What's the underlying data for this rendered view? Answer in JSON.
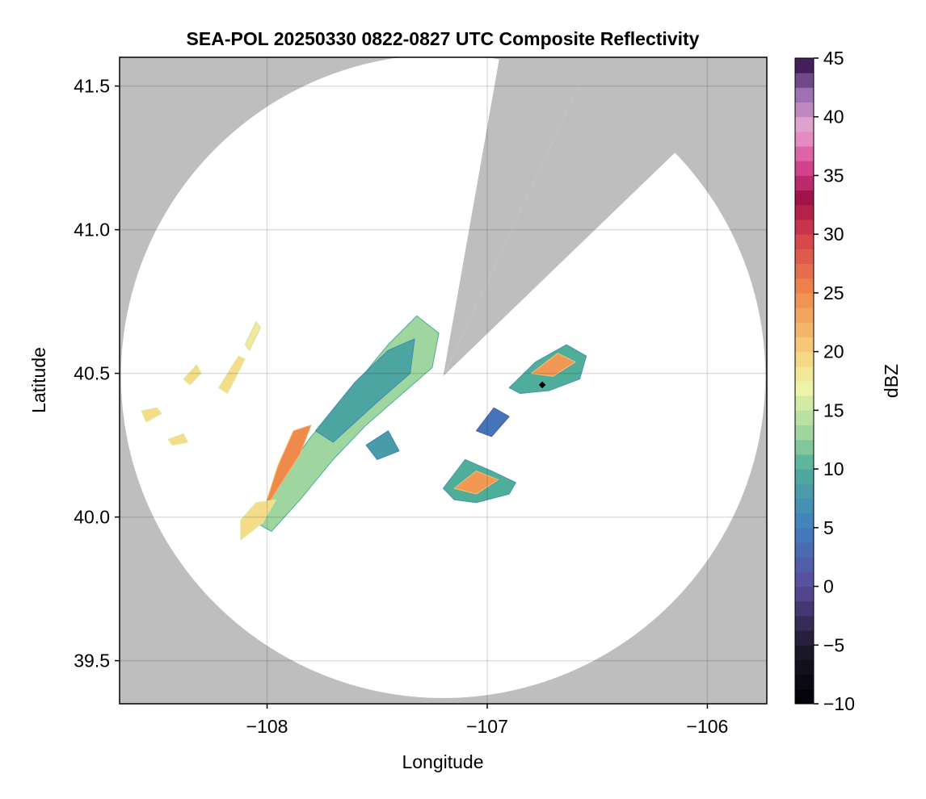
{
  "chart_data": {
    "type": "heatmap",
    "title": "SEA-POL 20250330 0822-0827 UTC Composite Reflectivity",
    "xlabel": "Longitude",
    "ylabel": "Latitude",
    "xlim": [
      -108.67,
      -105.73
    ],
    "ylim": [
      39.35,
      41.6
    ],
    "xticks": [
      -108,
      -107,
      -106
    ],
    "yticks": [
      39.5,
      40.0,
      40.5,
      41.0,
      41.5
    ],
    "xtick_labels": [
      "−108",
      "−107",
      "−106"
    ],
    "ytick_labels": [
      "39.5",
      "40.0",
      "40.5",
      "41.0",
      "41.5"
    ],
    "grid": true,
    "outside_color": "#bebebe",
    "radar_coverage": {
      "center": [
        -107.2,
        40.49
      ],
      "radius_deg_lat": 1.12,
      "blocked_sectors": [
        {
          "lon1": -106.86,
          "lat1": 41.52,
          "lon2": -107.2,
          "lat2": 41.6
        },
        {
          "lon1": -106.06,
          "lat1": 41.12,
          "lon2": -106.86,
          "lat2": 41.52
        }
      ],
      "blocked_wedges": [
        {
          "from_bearing_deg": 10,
          "to_bearing_deg": 25
        },
        {
          "from_bearing_deg": 25,
          "to_bearing_deg": 46
        }
      ]
    },
    "radar_site_marker": {
      "lon": -106.75,
      "lat": 40.46
    },
    "colorbar": {
      "label": "dBZ",
      "min": -10,
      "max": 45,
      "ticks": [
        -10,
        -5,
        0,
        5,
        10,
        15,
        20,
        25,
        30,
        35,
        40,
        45
      ],
      "tick_labels": [
        "−10",
        "−5",
        "0",
        "5",
        "10",
        "15",
        "20",
        "25",
        "30",
        "35",
        "40",
        "45"
      ],
      "colormap_stops": [
        {
          "v": -10,
          "c": "#000004"
        },
        {
          "v": -5,
          "c": "#1e1a2e"
        },
        {
          "v": 0,
          "c": "#5b4a9c"
        },
        {
          "v": 5,
          "c": "#3f7fbf"
        },
        {
          "v": 10,
          "c": "#4fae9a"
        },
        {
          "v": 13,
          "c": "#9fd59f"
        },
        {
          "v": 17,
          "c": "#eef5a8"
        },
        {
          "v": 20,
          "c": "#f7d07a"
        },
        {
          "v": 25,
          "c": "#f08a4b"
        },
        {
          "v": 30,
          "c": "#d53d4a"
        },
        {
          "v": 33,
          "c": "#a01048"
        },
        {
          "v": 36,
          "c": "#d94896"
        },
        {
          "v": 39,
          "c": "#e9a8d2"
        },
        {
          "v": 42,
          "c": "#9b6fb0"
        },
        {
          "v": 45,
          "c": "#2d0a45"
        }
      ]
    },
    "echo_regions": [
      {
        "name": "main-band-outer",
        "dbz": 13,
        "points": [
          [
            -108.05,
            39.98
          ],
          [
            -107.95,
            40.12
          ],
          [
            -107.8,
            40.28
          ],
          [
            -107.6,
            40.46
          ],
          [
            -107.45,
            40.6
          ],
          [
            -107.32,
            40.7
          ],
          [
            -107.22,
            40.64
          ],
          [
            -107.25,
            40.52
          ],
          [
            -107.4,
            40.42
          ],
          [
            -107.55,
            40.32
          ],
          [
            -107.7,
            40.2
          ],
          [
            -107.85,
            40.06
          ],
          [
            -107.98,
            39.95
          ]
        ]
      },
      {
        "name": "main-band-teal",
        "dbz": 9,
        "points": [
          [
            -107.78,
            40.3
          ],
          [
            -107.6,
            40.47
          ],
          [
            -107.45,
            40.58
          ],
          [
            -107.33,
            40.62
          ],
          [
            -107.35,
            40.5
          ],
          [
            -107.5,
            40.4
          ],
          [
            -107.7,
            40.26
          ]
        ]
      },
      {
        "name": "main-band-core",
        "dbz": 25,
        "points": [
          [
            -108.03,
            40.0
          ],
          [
            -107.95,
            40.1
          ],
          [
            -107.85,
            40.22
          ],
          [
            -107.8,
            40.32
          ],
          [
            -107.88,
            40.3
          ],
          [
            -107.95,
            40.18
          ],
          [
            -108.0,
            40.06
          ]
        ]
      },
      {
        "name": "main-band-tail",
        "dbz": 19,
        "points": [
          [
            -108.12,
            39.92
          ],
          [
            -108.02,
            39.98
          ],
          [
            -107.96,
            40.06
          ],
          [
            -108.05,
            40.05
          ],
          [
            -108.12,
            39.99
          ]
        ]
      },
      {
        "name": "west-scatter-1",
        "dbz": 19,
        "points": [
          [
            -108.55,
            40.33
          ],
          [
            -108.48,
            40.36
          ],
          [
            -108.5,
            40.38
          ],
          [
            -108.57,
            40.37
          ]
        ]
      },
      {
        "name": "west-scatter-2",
        "dbz": 19,
        "points": [
          [
            -108.38,
            40.48
          ],
          [
            -108.32,
            40.53
          ],
          [
            -108.3,
            40.5
          ],
          [
            -108.35,
            40.46
          ]
        ]
      },
      {
        "name": "west-scatter-3",
        "dbz": 19,
        "points": [
          [
            -108.22,
            40.45
          ],
          [
            -108.13,
            40.56
          ],
          [
            -108.1,
            40.55
          ],
          [
            -108.18,
            40.43
          ]
        ]
      },
      {
        "name": "west-scatter-4",
        "dbz": 18,
        "points": [
          [
            -108.1,
            40.6
          ],
          [
            -108.05,
            40.68
          ],
          [
            -108.03,
            40.66
          ],
          [
            -108.08,
            40.58
          ]
        ]
      },
      {
        "name": "west-scatter-5",
        "dbz": 19,
        "points": [
          [
            -108.45,
            40.27
          ],
          [
            -108.38,
            40.29
          ],
          [
            -108.36,
            40.26
          ],
          [
            -108.43,
            40.25
          ]
        ]
      },
      {
        "name": "east-storm-1",
        "dbz": 10,
        "points": [
          [
            -106.9,
            40.45
          ],
          [
            -106.78,
            40.54
          ],
          [
            -106.64,
            40.6
          ],
          [
            -106.55,
            40.56
          ],
          [
            -106.58,
            40.48
          ],
          [
            -106.72,
            40.44
          ],
          [
            -106.85,
            40.43
          ]
        ]
      },
      {
        "name": "east-storm-1-core",
        "dbz": 24,
        "points": [
          [
            -106.8,
            40.5
          ],
          [
            -106.68,
            40.57
          ],
          [
            -106.6,
            40.54
          ],
          [
            -106.7,
            40.49
          ]
        ]
      },
      {
        "name": "east-storm-2",
        "dbz": 4,
        "points": [
          [
            -107.05,
            40.3
          ],
          [
            -106.97,
            40.38
          ],
          [
            -106.9,
            40.35
          ],
          [
            -106.98,
            40.28
          ]
        ]
      },
      {
        "name": "south-storm",
        "dbz": 10,
        "points": [
          [
            -107.2,
            40.1
          ],
          [
            -107.1,
            40.2
          ],
          [
            -106.98,
            40.16
          ],
          [
            -106.87,
            40.12
          ],
          [
            -106.9,
            40.08
          ],
          [
            -107.05,
            40.05
          ],
          [
            -107.15,
            40.06
          ]
        ]
      },
      {
        "name": "south-storm-core",
        "dbz": 24,
        "points": [
          [
            -107.15,
            40.1
          ],
          [
            -107.05,
            40.16
          ],
          [
            -106.95,
            40.13
          ],
          [
            -107.05,
            40.08
          ]
        ]
      },
      {
        "name": "mid-patch",
        "dbz": 8,
        "points": [
          [
            -107.55,
            40.25
          ],
          [
            -107.45,
            40.3
          ],
          [
            -107.4,
            40.23
          ],
          [
            -107.5,
            40.2
          ]
        ]
      }
    ]
  }
}
